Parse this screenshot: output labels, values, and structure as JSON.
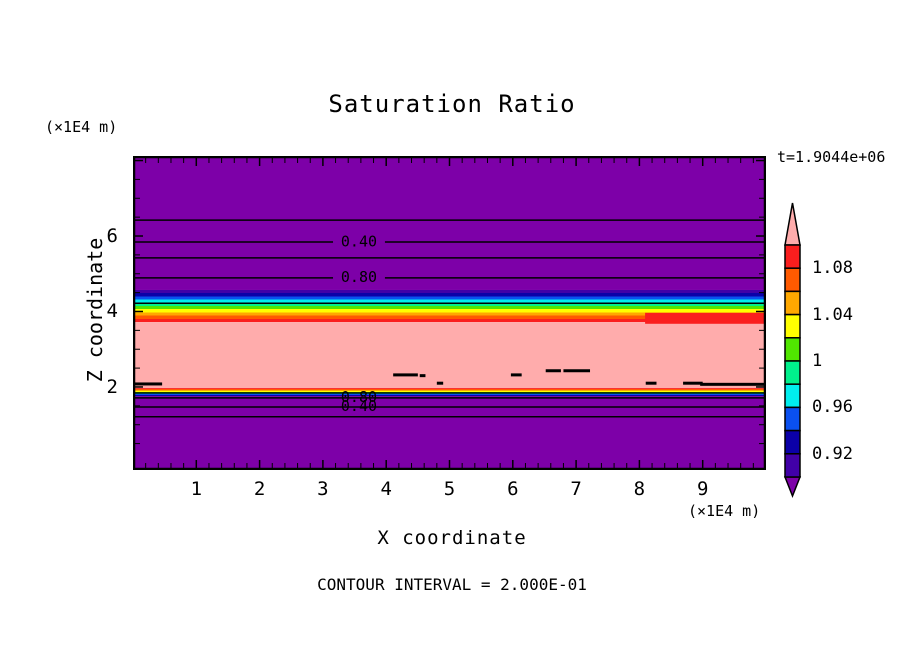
{
  "title": "Saturation Ratio",
  "header": {
    "y_units": "(×1E4 m)",
    "time": "t=1.9044e+06"
  },
  "axes": {
    "x_label": "X coordinate",
    "z_label": "Z coordinate",
    "x_units": "(×1E4 m)"
  },
  "footer": {
    "contour_interval": "CONTOUR INTERVAL = 2.000E-01"
  },
  "chart_data": {
    "type": "heatmap",
    "title": "Saturation Ratio",
    "xlabel": "X coordinate",
    "ylabel": "Z coordinate",
    "axis_units": "×1E4 m",
    "time_annotation": "t=1.9044e+06",
    "contour_interval": 0.2,
    "xlim": [
      0,
      10
    ],
    "zlim": [
      -0.2,
      8.12
    ],
    "x_major_ticks": [
      1,
      2,
      3,
      4,
      5,
      6,
      7,
      8,
      9
    ],
    "x_minor_step": 0.2,
    "z_major_ticks": [
      2,
      4,
      6
    ],
    "z_minor_step": 0.5,
    "field_note": "saturation ratio is horizontally layered, varying only with z",
    "fill_bands": [
      {
        "z_top": 8.12,
        "z_bottom": 4.57,
        "fill": "#7D00A8",
        "ratio": "< 0.90"
      },
      {
        "z_top": 4.57,
        "z_bottom": 3.72,
        "stops": [
          "#4100A8",
          "#0B00A8",
          "#0A50F0",
          "#00EEEE",
          "#00F08C",
          "#50E600",
          "#FFFF00",
          "#FFA800",
          "#FF5A00",
          "#FA1E1E"
        ],
        "ratio": "0.90 to 1.10"
      },
      {
        "z_top": 3.72,
        "z_bottom": 1.97,
        "fill": "#FFACAC",
        "ratio": "> 1.10"
      },
      {
        "z_top": 1.97,
        "z_bottom": 1.76,
        "stops": [
          "#FA1E1E",
          "#FF5A00",
          "#FFA800",
          "#FFFF00",
          "#50E600",
          "#00EEEE",
          "#0A50F0",
          "#0B00A8"
        ],
        "ratio": "1.10 to 0.90"
      },
      {
        "z_top": 1.76,
        "z_bottom": -0.2,
        "fill": "#7D00A8",
        "ratio": "< 0.90"
      }
    ],
    "contour_lines": [
      {
        "level": 0.2,
        "z": 6.42
      },
      {
        "level": 0.4,
        "z": 5.84,
        "gap": [
          3.16,
          3.98
        ],
        "labeled": true
      },
      {
        "level": 0.6,
        "z": 5.42
      },
      {
        "level": 0.8,
        "z": 4.89,
        "gap": [
          3.16,
          3.98
        ],
        "labeled": true
      },
      {
        "level": 1.0,
        "z": 4.22
      },
      {
        "level": 1.0,
        "z": 1.84
      },
      {
        "level": 0.8,
        "z": 1.71,
        "labeled": true
      },
      {
        "level": 0.6,
        "z": 1.47
      },
      {
        "level": 0.4,
        "z": 1.21,
        "labeled": true
      }
    ],
    "inline_labels": [
      {
        "text": "0.40",
        "x": 3.57,
        "z": 5.86
      },
      {
        "text": "0.80",
        "x": 3.57,
        "z": 4.91
      },
      {
        "text": "0.80",
        "x": 3.57,
        "z": 1.74
      },
      {
        "text": "0.40",
        "x": 3.57,
        "z": 1.5
      }
    ],
    "patches": [
      {
        "x1": 8.09,
        "x2": 10.0,
        "z": 3.82,
        "h": 11,
        "color": "#FA1E1E"
      },
      {
        "x1": 0.03,
        "x2": 0.46,
        "z": 2.08,
        "color": "#000000"
      },
      {
        "x1": 4.11,
        "x2": 4.5,
        "z": 2.32,
        "color": "#000000"
      },
      {
        "x1": 4.53,
        "x2": 4.62,
        "z": 2.3,
        "color": "#000000"
      },
      {
        "x1": 4.8,
        "x2": 4.9,
        "z": 2.1,
        "color": "#000000"
      },
      {
        "x1": 5.97,
        "x2": 6.14,
        "z": 2.32,
        "color": "#000000"
      },
      {
        "x1": 6.52,
        "x2": 6.76,
        "z": 2.43,
        "color": "#000000"
      },
      {
        "x1": 6.8,
        "x2": 7.22,
        "z": 2.43,
        "color": "#000000"
      },
      {
        "x1": 8.1,
        "x2": 8.27,
        "z": 2.1,
        "color": "#000000"
      },
      {
        "x1": 8.69,
        "x2": 9.0,
        "z": 2.1,
        "color": "#000000"
      },
      {
        "x1": 8.96,
        "x2": 10.0,
        "z": 2.07,
        "color": "#000000"
      }
    ],
    "colorbar": {
      "tick_labels": [
        "1.08",
        "1.04",
        "1",
        "0.96",
        "0.92"
      ],
      "tick_positions": [
        1,
        3,
        5,
        7,
        9
      ],
      "segment_value_step": 0.02,
      "range": [
        0.9,
        1.1
      ],
      "segments_top_to_bottom": [
        "#FA1E1E",
        "#FF5A00",
        "#FFA800",
        "#FFFF00",
        "#50E600",
        "#00F08C",
        "#00EEEE",
        "#0A50F0",
        "#0B00A8",
        "#4100A8"
      ],
      "over_arrow_color": "#FFACAC",
      "under_arrow_color": "#7D00A8"
    }
  }
}
